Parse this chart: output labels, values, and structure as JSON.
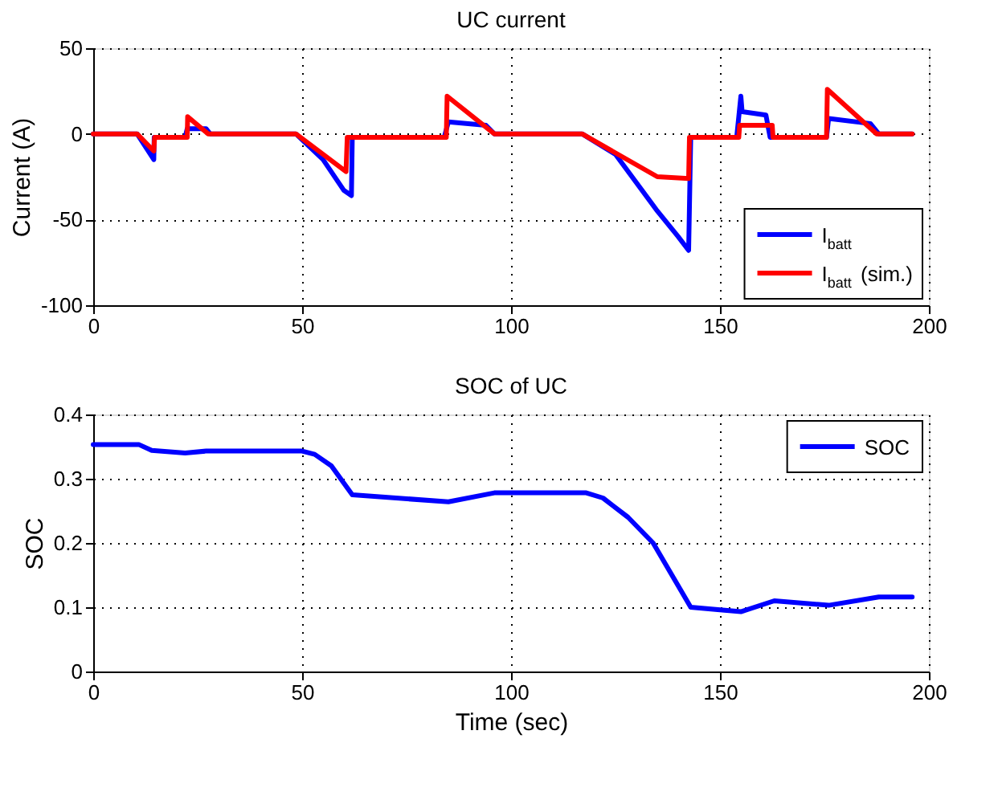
{
  "chart_data": [
    {
      "type": "line",
      "title": "UC current",
      "ylabel": "Current (A)",
      "xlim": [
        0,
        200
      ],
      "xticks": [
        0,
        50,
        100,
        150,
        200
      ],
      "ylim": [
        -100,
        50
      ],
      "yticks": [
        -100,
        -50,
        0,
        50
      ],
      "grid": true,
      "legend": "bottom right",
      "line_style": "solid",
      "marker": "none",
      "series": [
        {
          "name": "I$_{batt}$",
          "color": "#0000ff",
          "x": [
            0,
            10.5,
            14.5,
            14.6,
            22,
            22.5,
            27,
            28,
            48.5,
            55,
            60,
            61.8,
            62,
            84,
            85,
            94,
            96,
            117,
            125,
            135,
            140,
            142.5,
            143,
            154,
            155,
            155.3,
            161,
            162,
            175.5,
            176,
            186,
            188,
            196
          ],
          "values": [
            0,
            0,
            -15,
            -2,
            -2,
            3,
            3,
            0,
            0,
            -15,
            -33,
            -36,
            -2,
            -2,
            7,
            5,
            0,
            0,
            -12,
            -45,
            -60,
            -68,
            -2,
            -2,
            22,
            13,
            11,
            -2,
            -2,
            9,
            6,
            0,
            0
          ]
        },
        {
          "name": "I$_{batt}$ (sim.)",
          "color": "#ff0000",
          "x": [
            0,
            10.5,
            14.5,
            14.7,
            22.5,
            22.6,
            27.5,
            48.5,
            60.5,
            60.8,
            84.5,
            84.7,
            96,
            117,
            135,
            142.5,
            142.7,
            154.5,
            154.7,
            162.5,
            162.7,
            175.5,
            175.7,
            187.5,
            196
          ],
          "values": [
            0,
            0,
            -10,
            -2,
            -2,
            10,
            0,
            0,
            -22,
            -2,
            -2,
            22,
            0,
            0,
            -25,
            -26,
            -2,
            -2,
            5,
            5,
            -2,
            -2,
            26,
            0,
            0
          ]
        }
      ]
    },
    {
      "type": "line",
      "title": "SOC of UC",
      "xlabel": "Time (sec)",
      "ylabel": "SOC",
      "xlim": [
        0,
        200
      ],
      "xticks": [
        0,
        50,
        100,
        150,
        200
      ],
      "ylim": [
        0,
        0.4
      ],
      "yticks": [
        0,
        0.1,
        0.2,
        0.3,
        0.4
      ],
      "grid": true,
      "legend": "top right",
      "line_style": "solid",
      "marker": "none",
      "series": [
        {
          "name": "SOC",
          "color": "#0000ff",
          "x": [
            0,
            11,
            14,
            22,
            27,
            50,
            53,
            57,
            62,
            85,
            96,
            118,
            122,
            128,
            134,
            143,
            155,
            163,
            176,
            188,
            196
          ],
          "values": [
            0.353,
            0.353,
            0.344,
            0.34,
            0.343,
            0.343,
            0.338,
            0.32,
            0.275,
            0.264,
            0.278,
            0.278,
            0.27,
            0.24,
            0.2,
            0.1,
            0.093,
            0.11,
            0.103,
            0.116,
            0.116
          ]
        }
      ]
    }
  ]
}
